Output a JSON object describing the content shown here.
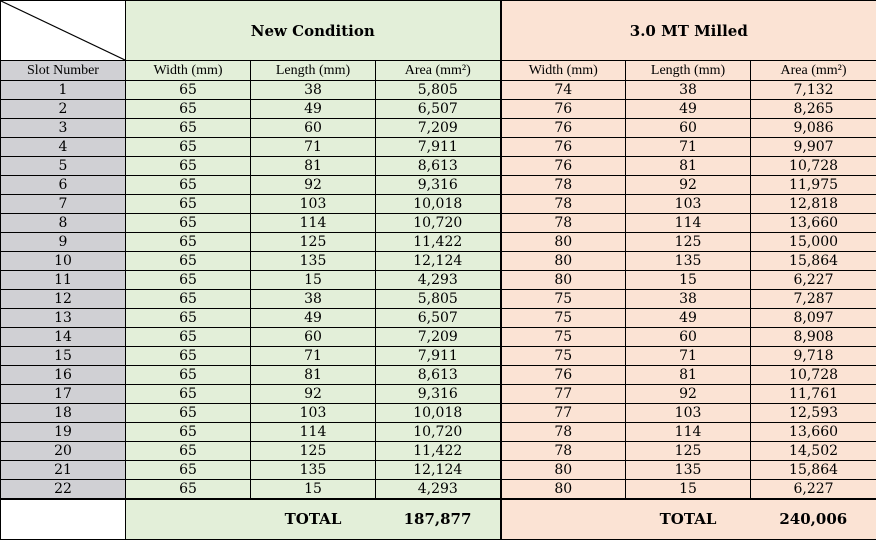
{
  "groups": {
    "new": {
      "title": "New Condition"
    },
    "milled": {
      "title": "3.0 MT Milled"
    }
  },
  "columns": {
    "slot": "Slot Number",
    "width": "Width (mm)",
    "length": "Length (mm)",
    "area": "Area (mm²)"
  },
  "rows": [
    {
      "slot": "1",
      "nw": "65",
      "nl": "38",
      "na": "5,805",
      "mw": "74",
      "ml": "38",
      "ma": "7,132"
    },
    {
      "slot": "2",
      "nw": "65",
      "nl": "49",
      "na": "6,507",
      "mw": "76",
      "ml": "49",
      "ma": "8,265"
    },
    {
      "slot": "3",
      "nw": "65",
      "nl": "60",
      "na": "7,209",
      "mw": "76",
      "ml": "60",
      "ma": "9,086"
    },
    {
      "slot": "4",
      "nw": "65",
      "nl": "71",
      "na": "7,911",
      "mw": "76",
      "ml": "71",
      "ma": "9,907"
    },
    {
      "slot": "5",
      "nw": "65",
      "nl": "81",
      "na": "8,613",
      "mw": "76",
      "ml": "81",
      "ma": "10,728"
    },
    {
      "slot": "6",
      "nw": "65",
      "nl": "92",
      "na": "9,316",
      "mw": "78",
      "ml": "92",
      "ma": "11,975"
    },
    {
      "slot": "7",
      "nw": "65",
      "nl": "103",
      "na": "10,018",
      "mw": "78",
      "ml": "103",
      "ma": "12,818"
    },
    {
      "slot": "8",
      "nw": "65",
      "nl": "114",
      "na": "10,720",
      "mw": "78",
      "ml": "114",
      "ma": "13,660"
    },
    {
      "slot": "9",
      "nw": "65",
      "nl": "125",
      "na": "11,422",
      "mw": "80",
      "ml": "125",
      "ma": "15,000"
    },
    {
      "slot": "10",
      "nw": "65",
      "nl": "135",
      "na": "12,124",
      "mw": "80",
      "ml": "135",
      "ma": "15,864"
    },
    {
      "slot": "11",
      "nw": "65",
      "nl": "15",
      "na": "4,293",
      "mw": "80",
      "ml": "15",
      "ma": "6,227"
    },
    {
      "slot": "12",
      "nw": "65",
      "nl": "38",
      "na": "5,805",
      "mw": "75",
      "ml": "38",
      "ma": "7,287"
    },
    {
      "slot": "13",
      "nw": "65",
      "nl": "49",
      "na": "6,507",
      "mw": "75",
      "ml": "49",
      "ma": "8,097"
    },
    {
      "slot": "14",
      "nw": "65",
      "nl": "60",
      "na": "7,209",
      "mw": "75",
      "ml": "60",
      "ma": "8,908"
    },
    {
      "slot": "15",
      "nw": "65",
      "nl": "71",
      "na": "7,911",
      "mw": "75",
      "ml": "71",
      "ma": "9,718"
    },
    {
      "slot": "16",
      "nw": "65",
      "nl": "81",
      "na": "8,613",
      "mw": "76",
      "ml": "81",
      "ma": "10,728"
    },
    {
      "slot": "17",
      "nw": "65",
      "nl": "92",
      "na": "9,316",
      "mw": "77",
      "ml": "92",
      "ma": "11,761"
    },
    {
      "slot": "18",
      "nw": "65",
      "nl": "103",
      "na": "10,018",
      "mw": "77",
      "ml": "103",
      "ma": "12,593"
    },
    {
      "slot": "19",
      "nw": "65",
      "nl": "114",
      "na": "10,720",
      "mw": "78",
      "ml": "114",
      "ma": "13,660"
    },
    {
      "slot": "20",
      "nw": "65",
      "nl": "125",
      "na": "11,422",
      "mw": "78",
      "ml": "125",
      "ma": "14,502"
    },
    {
      "slot": "21",
      "nw": "65",
      "nl": "135",
      "na": "12,124",
      "mw": "80",
      "ml": "135",
      "ma": "15,864"
    },
    {
      "slot": "22",
      "nw": "65",
      "nl": "15",
      "na": "4,293",
      "mw": "80",
      "ml": "15",
      "ma": "6,227"
    }
  ],
  "totals": {
    "label": "TOTAL",
    "new": "187,877",
    "milled": "240,006"
  },
  "colors": {
    "new_bg": "#e3efd9",
    "milled_bg": "#fbe3d4",
    "slot_bg": "#d0d0d4"
  }
}
